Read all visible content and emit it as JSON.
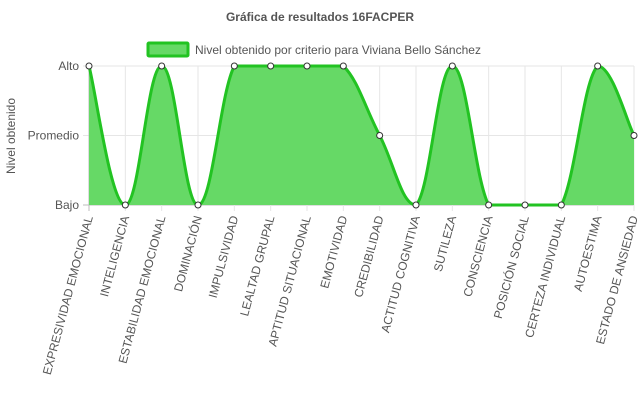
{
  "chart_data": {
    "type": "area",
    "title": "Gráfica de resultados 16FACPER",
    "ylabel": "Nivel obtenido",
    "xlabel": "",
    "y_levels": [
      "Bajo",
      "Promedio",
      "Alto"
    ],
    "ylim": [
      0,
      2
    ],
    "grid": true,
    "legend_position": "top-center",
    "categories": [
      "EXPRESIVIDAD EMOCIONAL",
      "INTELIGENCIA",
      "ESTABILIDAD EMOCIONAL",
      "DOMINACIÓN",
      "IMPULSIVIDAD",
      "LEALTAD GRUPAL",
      "APTITUD SITUACIONAL",
      "EMOTIVIDAD",
      "CREDIBILIDAD",
      "ACTITUD COGNITIVA",
      "SUTILEZA",
      "CONSCIENCIA",
      "POSICIÓN SOCIAL",
      "CERTEZA INDIVIDUAL",
      "AUTOESTIMA",
      "ESTADO DE ANSIEDAD"
    ],
    "series": [
      {
        "name": "Nivel obtenido por criterio para Viviana Bello Sánchez",
        "values": [
          2,
          0,
          2,
          0,
          2,
          2,
          2,
          2,
          1,
          0,
          2,
          0,
          0,
          0,
          2,
          1
        ]
      }
    ],
    "colors": {
      "fill": "#66d966",
      "line": "#22c322",
      "grid": "#e6e6e6",
      "axis": "#bdbdbd",
      "text": "#555555"
    }
  }
}
